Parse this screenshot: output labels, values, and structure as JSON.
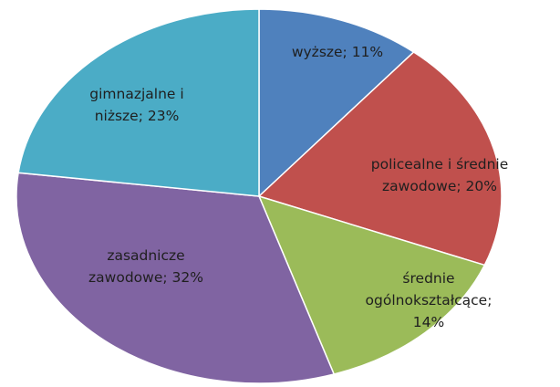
{
  "chart_data": {
    "type": "pie",
    "values": [
      11,
      20,
      14,
      32,
      23
    ],
    "value_labels": [
      "wyższe; 11%",
      "policealne i średnie\nzawodowe; 20%",
      "średnie\nogólnokształcące;\n14%",
      "zasadnicze\nzawodowe; 32%",
      "gimnazjalne i\nniższe; 23%"
    ],
    "colors": [
      "#4f81bd",
      "#c0504d",
      "#9bbb59",
      "#8064a2",
      "#4bacc6"
    ]
  }
}
